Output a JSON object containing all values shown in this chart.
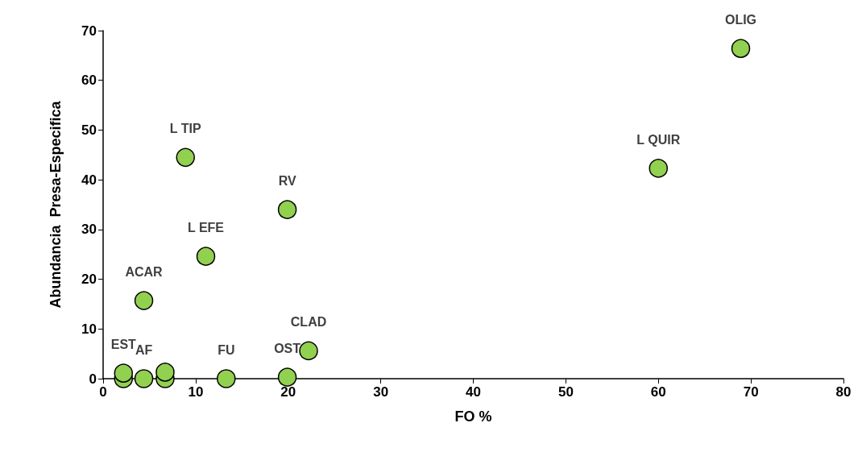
{
  "chart_data": {
    "type": "scatter",
    "xlabel": "FO %",
    "ylabel": "Abundancia  Presa-Especifica",
    "x": [
      2.2,
      2.2,
      4.4,
      6.7,
      6.7,
      13.3,
      19.9,
      22.2,
      4.4,
      11.1,
      19.9,
      8.9,
      60.0,
      68.9
    ],
    "series": [
      {
        "color": "#92d050",
        "values": [
          0,
          1.1,
          0,
          0,
          1.3,
          0,
          0.3,
          5.6,
          15.7,
          24.6,
          34.0,
          44.5,
          42.3,
          66.4
        ],
        "value_labels": [
          null,
          "EST",
          "AF",
          null,
          null,
          "FU",
          "OST",
          "CLAD",
          "ACAR",
          "L EFE",
          "RV",
          "L TIP",
          "L QUIR",
          "OLIG"
        ]
      }
    ],
    "xlim": [
      0,
      80
    ],
    "xticks": [
      0,
      10,
      20,
      30,
      40,
      50,
      60,
      70,
      80
    ],
    "ylim": [
      0,
      70
    ],
    "yticks": [
      0,
      10,
      20,
      30,
      40,
      50,
      60,
      70
    ],
    "grid": false,
    "marker": "circle"
  }
}
